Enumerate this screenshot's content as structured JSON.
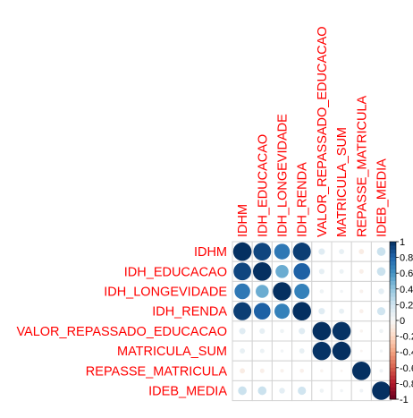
{
  "chart_data": {
    "type": "heatmap",
    "subtype": "correlation-circle",
    "variables": [
      "IDHM",
      "IDH_EDUCACAO",
      "IDH_LONGEVIDADE",
      "IDH_RENDA",
      "VALOR_REPASSADO_EDUCACAO",
      "MATRICULA_SUM",
      "REPASSE_MATRICULA",
      "IDEB_MEDIA"
    ],
    "matrix": [
      [
        1.0,
        0.92,
        0.72,
        0.95,
        0.12,
        0.08,
        -0.08,
        0.22
      ],
      [
        0.92,
        1.0,
        0.5,
        0.82,
        0.09,
        0.06,
        -0.06,
        0.22
      ],
      [
        0.72,
        0.5,
        1.0,
        0.68,
        0.05,
        0.03,
        -0.04,
        0.1
      ],
      [
        0.95,
        0.82,
        0.68,
        1.0,
        0.12,
        0.08,
        -0.05,
        0.2
      ],
      [
        0.12,
        0.09,
        0.05,
        0.12,
        1.0,
        0.99,
        -0.03,
        0.05
      ],
      [
        0.08,
        0.06,
        0.03,
        0.08,
        0.99,
        1.0,
        -0.02,
        0.03
      ],
      [
        -0.08,
        -0.06,
        -0.04,
        -0.05,
        -0.03,
        -0.02,
        1.0,
        0.04
      ],
      [
        0.22,
        0.22,
        0.1,
        0.2,
        0.05,
        0.03,
        0.04,
        1.0
      ]
    ],
    "legend_ticks": [
      "1",
      "0.8",
      "0.6",
      "0.4",
      "0.2",
      "0",
      "-0.2",
      "-0.4",
      "-0.6",
      "-0.8",
      "-1"
    ],
    "legend_range": [
      -1,
      1
    ],
    "label_color": "#ff0000",
    "positive_color": "#053061",
    "negative_color": "#67001f",
    "neutral_color": "#f7f7f7"
  }
}
